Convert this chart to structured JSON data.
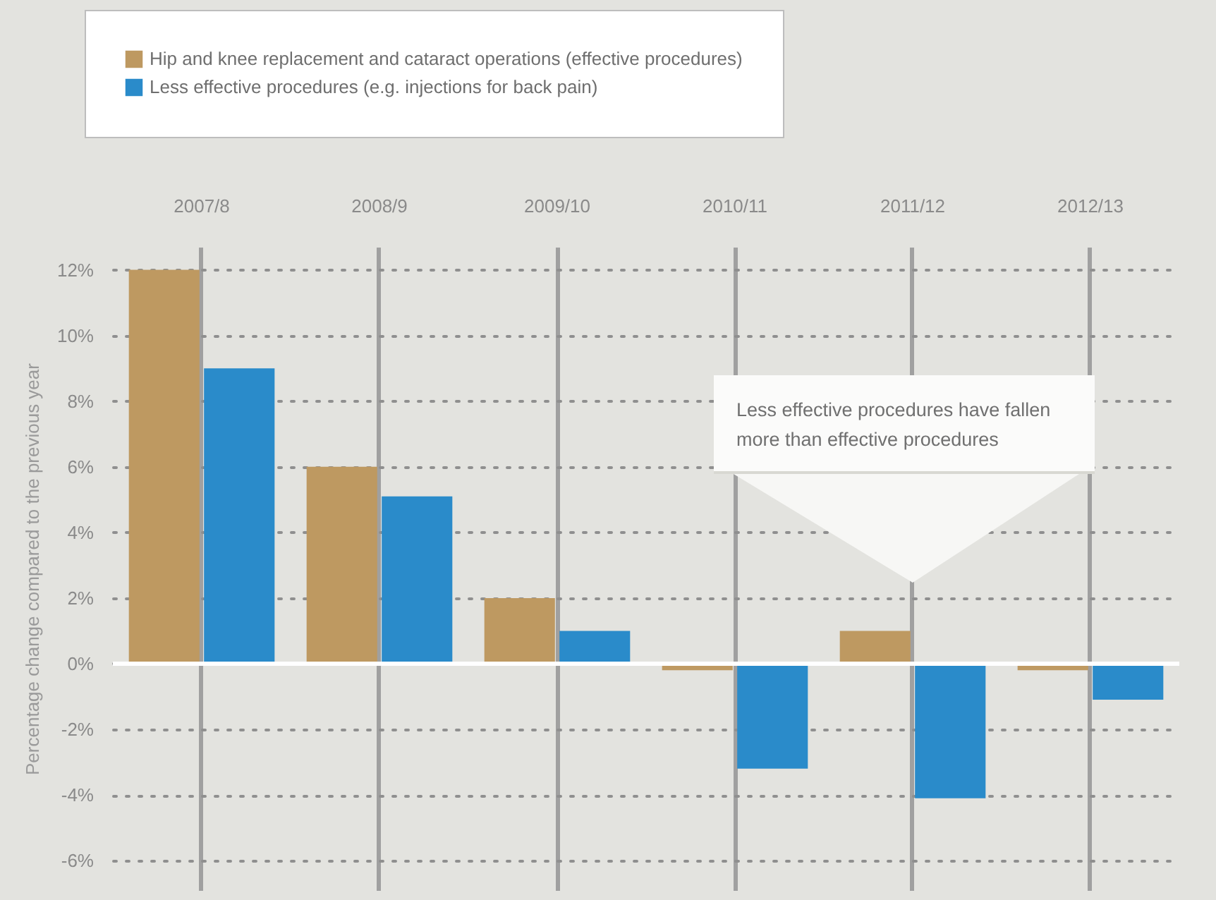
{
  "chart_data": {
    "type": "bar",
    "ylabel": "Percentage change compared to the previous year",
    "categories": [
      "2007/8",
      "2008/9",
      "2009/10",
      "2010/11",
      "2011/12",
      "2012/13"
    ],
    "series": [
      {
        "name": "Hip and knee replacement and cataract operations (effective procedures)",
        "color": "#be9961",
        "values": [
          12,
          6,
          2,
          -0.2,
          1,
          -0.2
        ]
      },
      {
        "name": "Less effective procedures (e.g. injections for back pain)",
        "color": "#2a8bca",
        "values": [
          9,
          5.1,
          1,
          -3.2,
          -4.1,
          -1.1
        ]
      }
    ],
    "ylim": [
      -6.9,
      12.7
    ],
    "yticks": [
      {
        "value": -6,
        "label": "-6%"
      },
      {
        "value": -4,
        "label": "-4%"
      },
      {
        "value": -2,
        "label": "-2%"
      },
      {
        "value": 0,
        "label": "0%"
      },
      {
        "value": 2,
        "label": "2%"
      },
      {
        "value": 4,
        "label": "4%"
      },
      {
        "value": 6,
        "label": "6%"
      },
      {
        "value": 8,
        "label": "8%"
      },
      {
        "value": 10,
        "label": "10%"
      },
      {
        "value": 12,
        "label": "12%"
      }
    ],
    "grid": true,
    "legend": "top",
    "ref_lines": [
      {
        "axis": "y",
        "value": 0,
        "color": "#ffffff"
      }
    ],
    "annotations": [
      "Less effective procedures have fallen more than effective procedures"
    ]
  }
}
